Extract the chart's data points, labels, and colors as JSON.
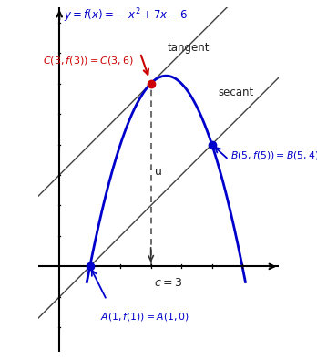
{
  "bg_color": "#ffffff",
  "xlim": [
    -0.7,
    7.2
  ],
  "ylim": [
    -2.8,
    8.5
  ],
  "curve_color": "#0000cc",
  "line_color": "#404040",
  "point_C": [
    3,
    6
  ],
  "point_A": [
    1,
    0
  ],
  "point_B": [
    5,
    4
  ],
  "title_color": "#0000cc",
  "red_color": "#cc0000",
  "blue_color": "#0000cc",
  "dark_color": "#222222"
}
